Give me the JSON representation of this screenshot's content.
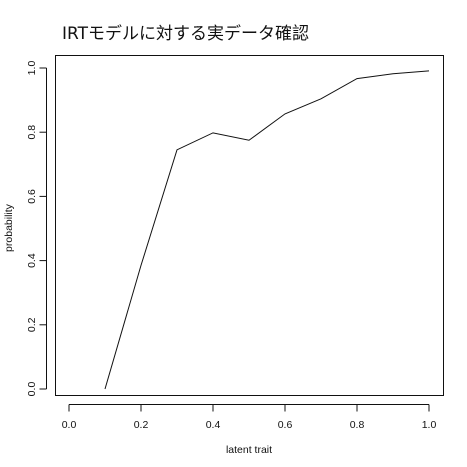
{
  "chart_data": {
    "type": "line",
    "title": "IRTモデルに対する実データ確認",
    "xlabel": "latent trait",
    "ylabel": "probability",
    "xlim": [
      0.0,
      1.0
    ],
    "ylim": [
      0.0,
      1.0
    ],
    "x_ticks": [
      "0.0",
      "0.2",
      "0.4",
      "0.6",
      "0.8",
      "1.0"
    ],
    "y_ticks": [
      "0.0",
      "0.2",
      "0.4",
      "0.6",
      "0.8",
      "1.0"
    ],
    "grid": false,
    "legend": "none",
    "series": [
      {
        "x": [
          0.1,
          0.2,
          0.3,
          0.4,
          0.5,
          0.6,
          0.7,
          0.8,
          0.9,
          1.0
        ],
        "values": [
          0.0,
          0.385,
          0.745,
          0.798,
          0.775,
          0.857,
          0.904,
          0.967,
          0.982,
          0.991
        ],
        "color": "#111111"
      }
    ]
  }
}
